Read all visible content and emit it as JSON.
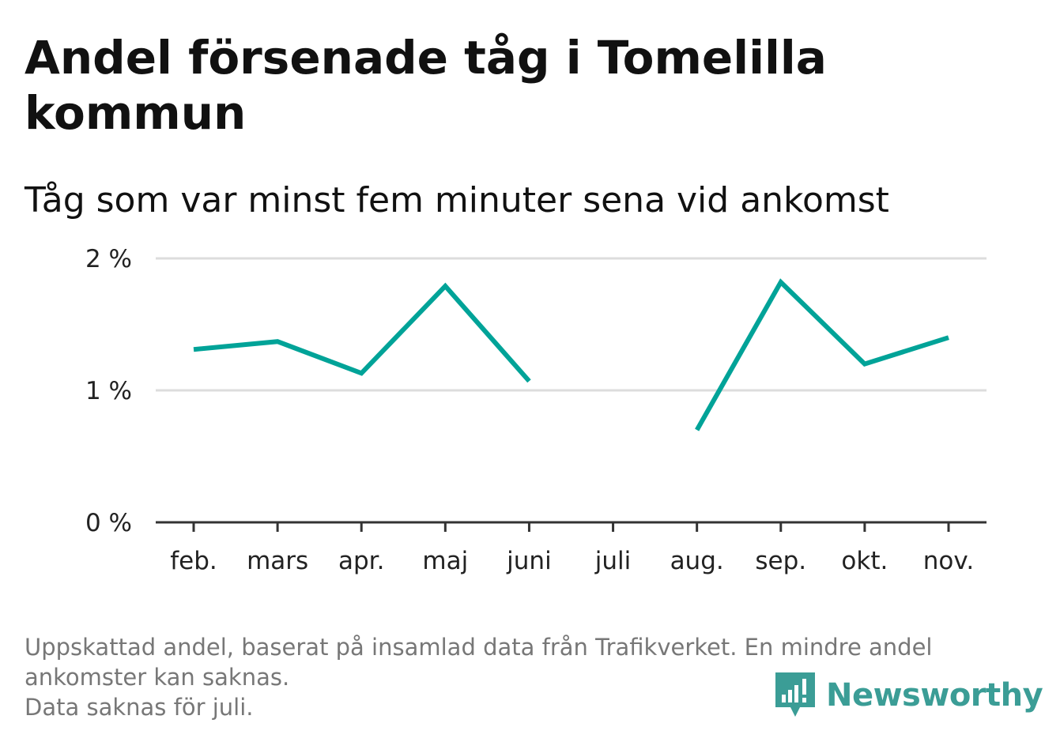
{
  "title": "Andel försenade tåg i Tomelilla kommun",
  "subtitle": "Tåg som var minst fem minuter sena vid ankomst",
  "chart_data": {
    "type": "line",
    "title": "Andel försenade tåg i Tomelilla kommun",
    "subtitle": "Tåg som var minst fem minuter sena vid ankomst",
    "categories": [
      "feb.",
      "mars",
      "apr.",
      "maj",
      "juni",
      "juli",
      "aug.",
      "sep.",
      "okt.",
      "nov."
    ],
    "series": [
      {
        "values": [
          1.31,
          1.37,
          1.13,
          1.79,
          1.07,
          null,
          0.7,
          1.82,
          1.2,
          1.4
        ],
        "color": "#00a398"
      }
    ],
    "y_ticks": [
      {
        "value": 0,
        "label": "0 %"
      },
      {
        "value": 1,
        "label": "1 %"
      },
      {
        "value": 2,
        "label": "2 %"
      }
    ],
    "ylim": [
      0,
      2
    ],
    "xlabel": "",
    "ylabel": "",
    "grid": true
  },
  "footnote": {
    "line1": "Uppskattad andel, baserat på insamlad data från Trafikverket. En mindre andel",
    "line2": "ankomster kan saknas.",
    "line3": "Data saknas för juli."
  },
  "logo": {
    "text": "Newsworthy",
    "icon": "newsworthy-logo-icon",
    "color": "#3b9d96"
  }
}
